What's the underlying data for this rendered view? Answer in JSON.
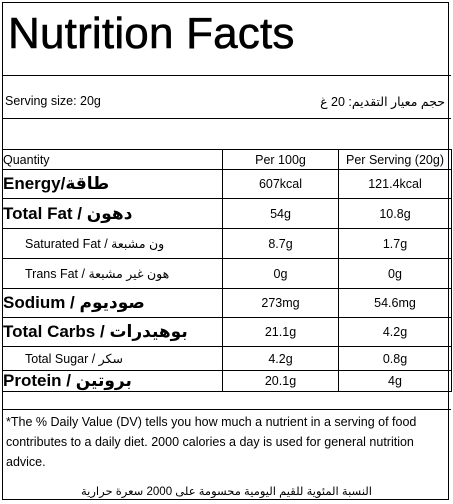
{
  "title": "Nutrition Facts",
  "serving": {
    "en": "Serving size: 20g",
    "ar": "حجم معيار التقديم: 20 غ"
  },
  "table": {
    "headers": [
      "Quantity",
      "Per 100g",
      "Per Serving (20g)"
    ],
    "rows": [
      {
        "label": "Energy/طاقة",
        "per100": "607kcal",
        "perServing": "121.4kcal"
      },
      {
        "label": "Total Fat / دهون",
        "per100": "54g",
        "perServing": "10.8g"
      },
      {
        "label": "Saturated Fat / ون مشبعة",
        "per100": "8.7g",
        "perServing": "1.7g"
      },
      {
        "label": "Trans Fat / هون غير مشبعة",
        "per100": "0g",
        "perServing": "0g"
      },
      {
        "label": "Sodium / صوديوم",
        "per100": "273mg",
        "perServing": "54.6mg"
      },
      {
        "label": "Total Carbs / بوهيدرات",
        "per100": "21.1g",
        "perServing": "4.2g"
      },
      {
        "label": "Total Sugar / سكر",
        "per100": "4.2g",
        "perServing": "0.8g"
      },
      {
        "label": "Protein / بروتين",
        "per100": "20.1g",
        "perServing": "4g"
      }
    ]
  },
  "footnote": {
    "en": "*The % Daily Value (DV) tells you how much a nutrient in a serving of food contributes to a daily diet. 2000 calories a day is used for general nutrition advice.",
    "ar": "النسبة المئوية للقيم اليومية محسومة على 2000 سعرة حرارية"
  }
}
